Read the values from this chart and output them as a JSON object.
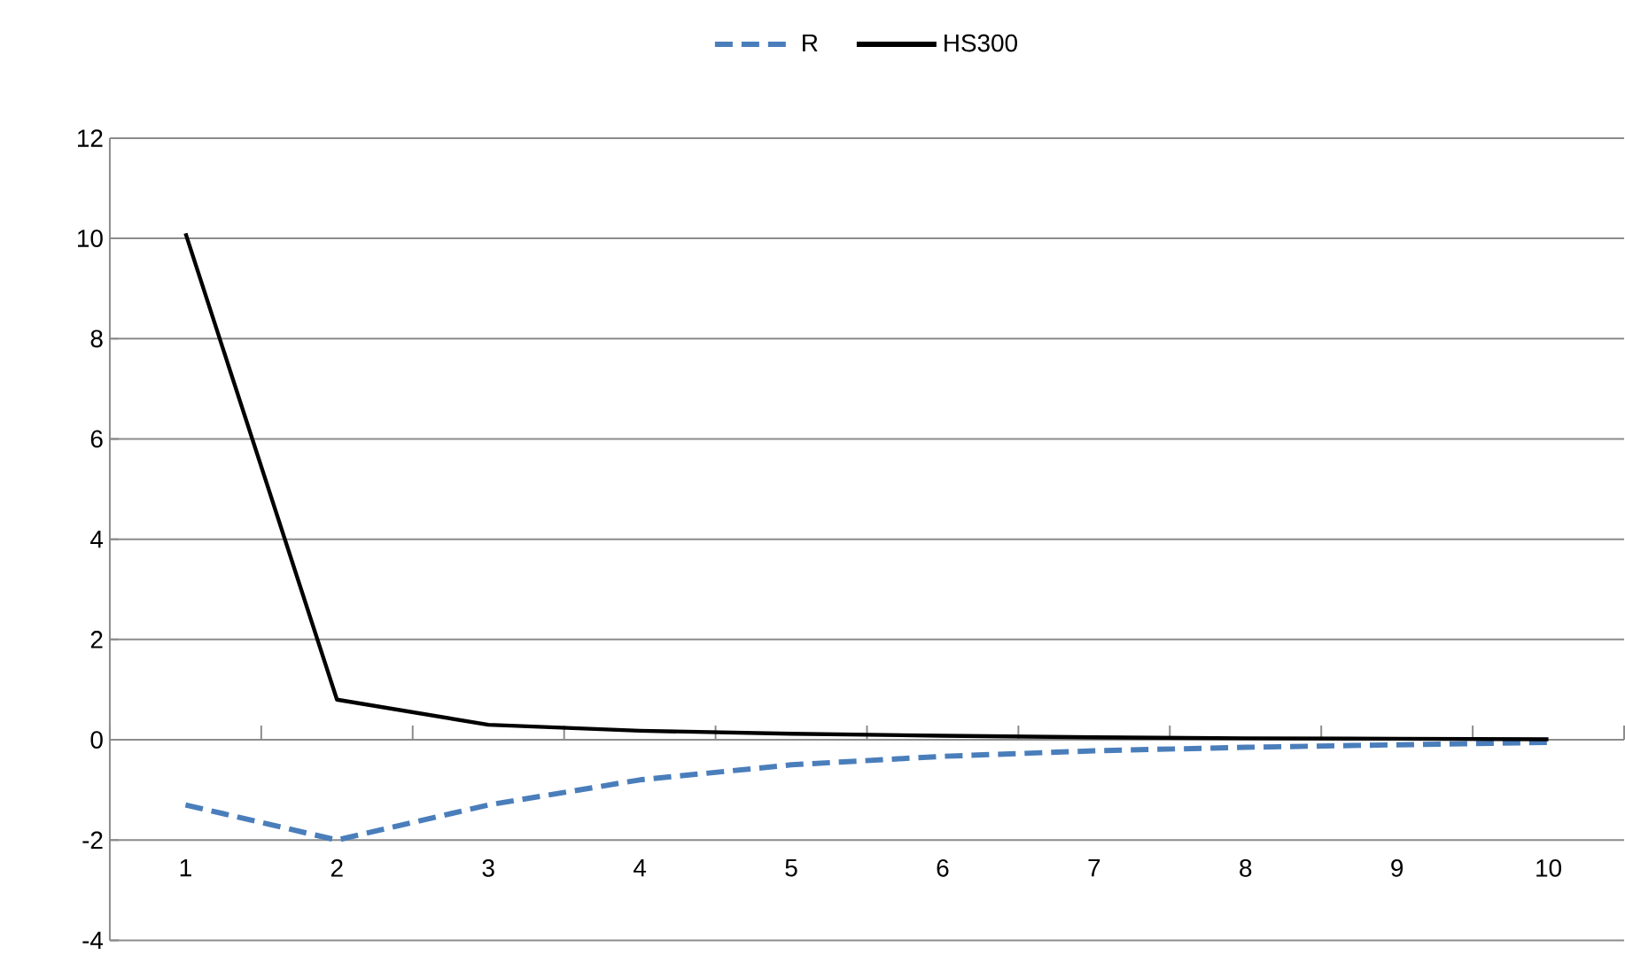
{
  "chart_data": {
    "type": "line",
    "categories": [
      "1",
      "2",
      "3",
      "4",
      "5",
      "6",
      "7",
      "8",
      "9",
      "10"
    ],
    "series": [
      {
        "name": "R",
        "color": "#4a7ebb",
        "line_style": "dashed",
        "values": [
          -1.3,
          -2.0,
          -1.3,
          -0.8,
          -0.5,
          -0.33,
          -0.22,
          -0.15,
          -0.1,
          -0.05
        ]
      },
      {
        "name": "HS300",
        "color": "#000000",
        "line_style": "solid",
        "values": [
          10.1,
          0.8,
          0.3,
          0.18,
          0.12,
          0.08,
          0.05,
          0.03,
          0.02,
          0.01
        ]
      }
    ],
    "ylim": [
      -4,
      12
    ],
    "yticks": [
      -4,
      -2,
      0,
      2,
      4,
      6,
      8,
      10,
      12
    ],
    "grid": "y",
    "legend": "top",
    "marker": "none"
  }
}
